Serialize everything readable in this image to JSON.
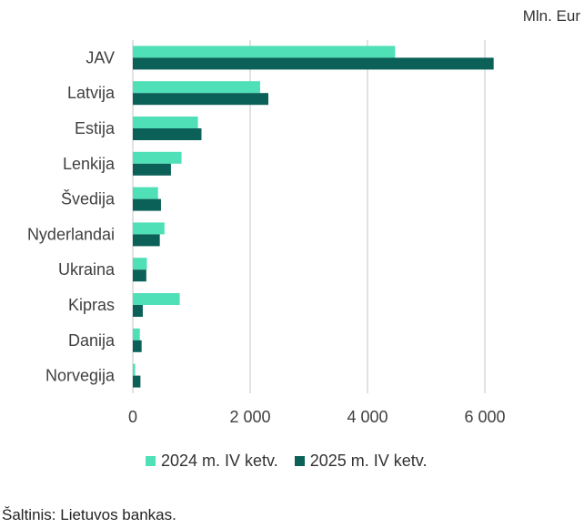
{
  "unit_label": "Mln. Eur",
  "source": "Šaltinis: Lietuvos bankas.",
  "colors": {
    "series1": "#4fe0b7",
    "series2": "#0b6058",
    "grid": "#d9d9d9",
    "text": "#404040"
  },
  "chart_data": {
    "type": "bar",
    "orientation": "horizontal",
    "categories": [
      "JAV",
      "Latvija",
      "Estija",
      "Lenkija",
      "Švedija",
      "Nyderlandai",
      "Ukraina",
      "Kipras",
      "Danija",
      "Norvegija"
    ],
    "series": [
      {
        "name": "2024 m. IV ketv.",
        "values": [
          4470,
          2170,
          1110,
          830,
          430,
          540,
          240,
          800,
          120,
          40
        ]
      },
      {
        "name": "2025 m. IV ketv.",
        "values": [
          6150,
          2310,
          1170,
          650,
          480,
          460,
          230,
          170,
          150,
          130
        ]
      }
    ],
    "xticks": [
      "0",
      "2 000",
      "4 000",
      "6 000"
    ],
    "xtick_values": [
      0,
      2000,
      4000,
      6000
    ],
    "xlim": [
      0,
      6500
    ],
    "grid": true,
    "legend_position": "bottom"
  }
}
